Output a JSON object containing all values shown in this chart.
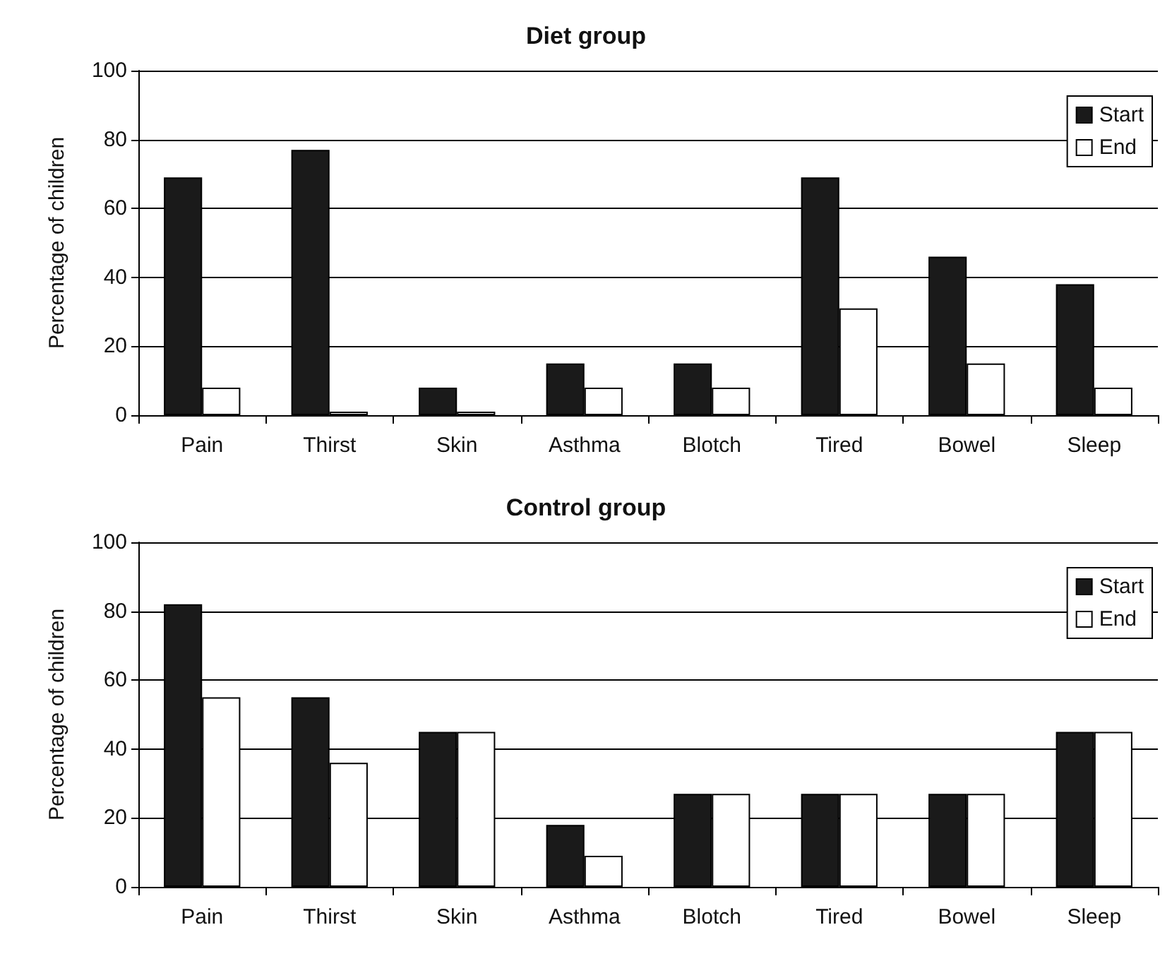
{
  "chart_data": [
    {
      "type": "bar",
      "title": "Diet group",
      "ylabel": "Percentage of children",
      "categories": [
        "Pain",
        "Thirst",
        "Skin",
        "Asthma",
        "Blotch",
        "Tired",
        "Bowel",
        "Sleep"
      ],
      "series": [
        {
          "name": "Start",
          "color": "#1a1a1a",
          "values": [
            69,
            77,
            8,
            15,
            15,
            69,
            46,
            38
          ]
        },
        {
          "name": "End",
          "color": "#ffffff",
          "values": [
            8,
            1,
            1,
            8,
            8,
            31,
            15,
            8
          ]
        }
      ],
      "ylim": [
        0,
        100
      ],
      "yticks": [
        0,
        20,
        40,
        60,
        80,
        100
      ],
      "grid": "y",
      "legend": "top right"
    },
    {
      "type": "bar",
      "title": "Control group",
      "ylabel": "Percentage of children",
      "categories": [
        "Pain",
        "Thirst",
        "Skin",
        "Asthma",
        "Blotch",
        "Tired",
        "Bowel",
        "Sleep"
      ],
      "series": [
        {
          "name": "Start",
          "color": "#1a1a1a",
          "values": [
            82,
            55,
            45,
            18,
            27,
            27,
            27,
            45
          ]
        },
        {
          "name": "End",
          "color": "#ffffff",
          "values": [
            55,
            36,
            45,
            9,
            27,
            27,
            27,
            45
          ]
        }
      ],
      "ylim": [
        0,
        100
      ],
      "yticks": [
        0,
        20,
        40,
        60,
        80,
        100
      ],
      "grid": "y",
      "legend": "top right"
    }
  ]
}
